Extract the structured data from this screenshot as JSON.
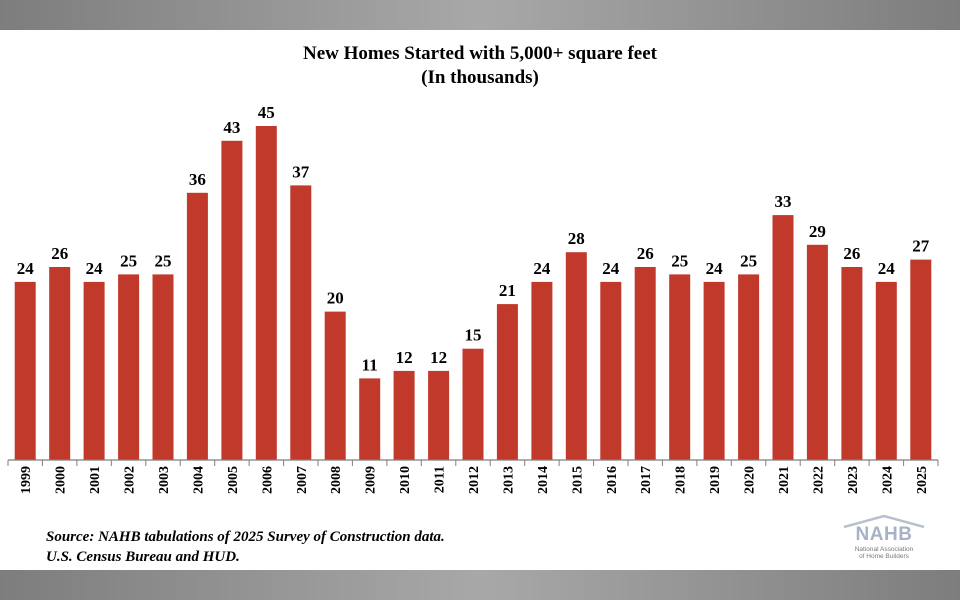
{
  "chart_data": {
    "type": "bar",
    "title": "New Homes Started with 5,000+ square feet",
    "subtitle": "(In thousands)",
    "categories": [
      "1999",
      "2000",
      "2001",
      "2002",
      "2003",
      "2004",
      "2005",
      "2006",
      "2007",
      "2008",
      "2009",
      "2010",
      "2011",
      "2012",
      "2013",
      "2014",
      "2015",
      "2016",
      "2017",
      "2018",
      "2019",
      "2020",
      "2021",
      "2022",
      "2023",
      "2024",
      "2025"
    ],
    "values": [
      24,
      26,
      24,
      25,
      25,
      36,
      43,
      45,
      37,
      20,
      11,
      12,
      12,
      15,
      21,
      24,
      28,
      24,
      26,
      25,
      24,
      25,
      33,
      29,
      26,
      24,
      27
    ],
    "ylim": [
      0,
      45
    ],
    "grid": false,
    "legend": "none",
    "bar_color": "#c0392b"
  },
  "source": {
    "line1": "Source: NAHB tabulations of 2025 Survey of Construction data.",
    "line2": "U.S. Census Bureau and HUD."
  },
  "logo": {
    "wordmark": "NAHB",
    "line1": "National Association",
    "line2": "of Home Builders"
  }
}
